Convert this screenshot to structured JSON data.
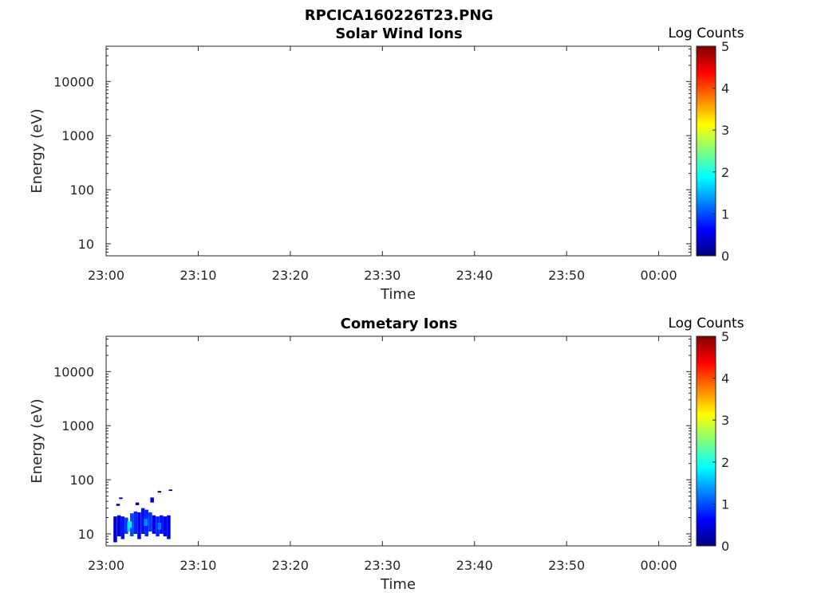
{
  "figure": {
    "title": "RPCICA160226T23.PNG"
  },
  "colormap": {
    "name": "jet",
    "stops": [
      "#00007f",
      "#0000ff",
      "#007fff",
      "#00ffff",
      "#7fff7f",
      "#ffff00",
      "#ff7f00",
      "#ff0000",
      "#7f0000"
    ]
  },
  "chart_data": [
    {
      "type": "heatmap",
      "title": "Solar Wind Ions",
      "xlabel": "Time",
      "ylabel": "Energy (eV)",
      "x_ticks": [
        "23:00",
        "23:10",
        "23:20",
        "23:30",
        "23:40",
        "23:50",
        "00:00"
      ],
      "x_range_minutes": [
        0,
        63.5
      ],
      "y_scale": "log",
      "y_ticks": [
        10,
        100,
        1000,
        10000
      ],
      "y_tick_labels": [
        "10",
        "100",
        "1000",
        "10000"
      ],
      "y_range": [
        6,
        45000
      ],
      "colorbar": {
        "label": "Log Counts",
        "range": [
          0,
          5
        ],
        "ticks": [
          0,
          1,
          2,
          3,
          4,
          5
        ],
        "tick_labels": [
          "0",
          "1",
          "2",
          "3",
          "4",
          "5"
        ]
      },
      "cells": []
    },
    {
      "type": "heatmap",
      "title": "Cometary Ions",
      "xlabel": "Time",
      "ylabel": "Energy (eV)",
      "x_ticks": [
        "23:00",
        "23:10",
        "23:20",
        "23:30",
        "23:40",
        "23:50",
        "00:00"
      ],
      "x_range_minutes": [
        0,
        63.5
      ],
      "y_scale": "log",
      "y_ticks": [
        10,
        100,
        1000,
        10000
      ],
      "y_tick_labels": [
        "10",
        "100",
        "1000",
        "10000"
      ],
      "y_range": [
        6,
        45000
      ],
      "colorbar": {
        "label": "Log Counts",
        "range": [
          0,
          5
        ],
        "ticks": [
          0,
          1,
          2,
          3,
          4,
          5
        ],
        "tick_labels": [
          "0",
          "1",
          "2",
          "3",
          "4",
          "5"
        ]
      },
      "band_extent": {
        "t_minutes": [
          0.7,
          7.0
        ],
        "energy_eV": [
          7,
          22
        ]
      },
      "cells": [
        {
          "t": 0.8,
          "e0": 7,
          "e1": 21,
          "v": 0.4
        },
        {
          "t": 1.2,
          "e0": 9,
          "e1": 22,
          "v": 0.5
        },
        {
          "t": 1.6,
          "e0": 8,
          "e1": 21,
          "v": 0.7
        },
        {
          "t": 2.0,
          "e0": 10,
          "e1": 20,
          "v": 0.9
        },
        {
          "t": 2.3,
          "e0": 11,
          "e1": 17,
          "v": 1.7
        },
        {
          "t": 2.6,
          "e0": 9,
          "e1": 24,
          "v": 1.0
        },
        {
          "t": 3.0,
          "e0": 10,
          "e1": 26,
          "v": 0.8
        },
        {
          "t": 3.4,
          "e0": 8,
          "e1": 25,
          "v": 0.6
        },
        {
          "t": 3.8,
          "e0": 10,
          "e1": 30,
          "v": 0.7
        },
        {
          "t": 4.2,
          "e0": 9,
          "e1": 28,
          "v": 0.8
        },
        {
          "t": 4.6,
          "e0": 11,
          "e1": 25,
          "v": 0.9
        },
        {
          "t": 5.0,
          "e0": 10,
          "e1": 22,
          "v": 0.6
        },
        {
          "t": 5.4,
          "e0": 9,
          "e1": 21,
          "v": 0.8
        },
        {
          "t": 5.8,
          "e0": 10,
          "e1": 22,
          "v": 0.7
        },
        {
          "t": 6.2,
          "e0": 9,
          "e1": 21,
          "v": 0.6
        },
        {
          "t": 6.6,
          "e0": 8,
          "e1": 22,
          "v": 0.5
        },
        {
          "t": 2.4,
          "e0": 13,
          "e1": 17,
          "v": 1.8
        },
        {
          "t": 4.1,
          "e0": 14,
          "e1": 19,
          "v": 1.3
        },
        {
          "t": 5.6,
          "e0": 12,
          "e1": 16,
          "v": 1.2
        },
        {
          "t": 1.1,
          "e0": 33,
          "e1": 36,
          "v": 0.3
        },
        {
          "t": 3.2,
          "e0": 34,
          "e1": 38,
          "v": 0.3
        },
        {
          "t": 4.8,
          "e0": 38,
          "e1": 47,
          "v": 0.4
        },
        {
          "t": 5.6,
          "e0": 58,
          "e1": 62,
          "v": 0.2
        },
        {
          "t": 6.8,
          "e0": 62,
          "e1": 66,
          "v": 0.2
        },
        {
          "t": 1.4,
          "e0": 44,
          "e1": 47,
          "v": 0.2
        }
      ]
    }
  ]
}
